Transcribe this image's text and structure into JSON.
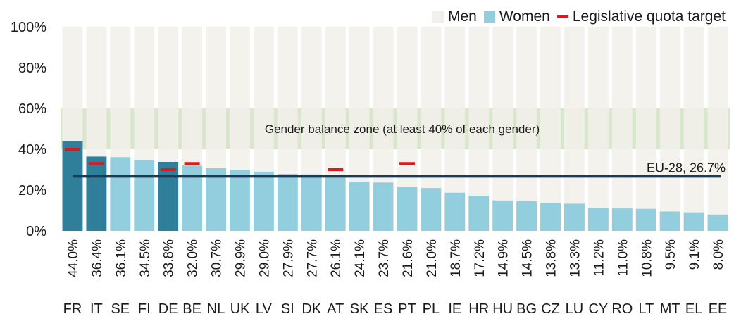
{
  "chart_data": {
    "type": "bar",
    "categories": [
      "FR",
      "IT",
      "SE",
      "FI",
      "DE",
      "BE",
      "NL",
      "UK",
      "LV",
      "SI",
      "DK",
      "AT",
      "SK",
      "ES",
      "PT",
      "PL",
      "IE",
      "HR",
      "HU",
      "BG",
      "CZ",
      "LU",
      "CY",
      "RO",
      "LT",
      "MT",
      "EL",
      "EE"
    ],
    "value_labels": [
      "44.0%",
      "36.4%",
      "36.1%",
      "34.5%",
      "33.8%",
      "32.0%",
      "30.7%",
      "29.9%",
      "29.0%",
      "27.9%",
      "27.7%",
      "26.1%",
      "24.1%",
      "23.7%",
      "21.6%",
      "21.0%",
      "18.7%",
      "17.2%",
      "14.9%",
      "14.5%",
      "13.8%",
      "13.3%",
      "11.2%",
      "11.0%",
      "10.8%",
      "9.5%",
      "9.1%",
      "8.0%"
    ],
    "series": [
      {
        "name": "Women",
        "values": [
          44.0,
          36.4,
          36.1,
          34.5,
          33.8,
          32.0,
          30.7,
          29.9,
          29.0,
          27.9,
          27.7,
          26.1,
          24.1,
          23.7,
          21.6,
          21.0,
          18.7,
          17.2,
          14.9,
          14.5,
          13.8,
          13.3,
          11.2,
          11.0,
          10.8,
          9.5,
          9.1,
          8.0
        ]
      },
      {
        "name": "Men",
        "values": [
          56.0,
          63.6,
          63.9,
          65.5,
          66.2,
          68.0,
          69.3,
          70.1,
          71.0,
          72.1,
          72.3,
          73.9,
          75.9,
          76.3,
          78.4,
          79.0,
          81.3,
          82.8,
          85.1,
          85.5,
          86.2,
          86.7,
          88.8,
          89.0,
          89.2,
          90.5,
          90.9,
          92.0
        ]
      }
    ],
    "quota_series_name": "Legislative quota target",
    "quota_targets": [
      {
        "category": "FR",
        "value": 40
      },
      {
        "category": "IT",
        "value": 33
      },
      {
        "category": "DE",
        "value": 30
      },
      {
        "category": "BE",
        "value": 33
      },
      {
        "category": "AT",
        "value": 30
      },
      {
        "category": "PT",
        "value": 33
      }
    ],
    "highlighted_categories": [
      "FR",
      "IT",
      "DE"
    ],
    "zone": {
      "from": 40,
      "to": 60,
      "label": "Gender balance zone (at least 40% of each gender)"
    },
    "reference_line": {
      "value": 26.7,
      "label": "EU-28, 26.7%"
    },
    "ylim": [
      0,
      100
    ],
    "yticks": [
      0,
      20,
      40,
      60,
      80,
      100
    ],
    "ytick_labels": [
      "0%",
      "20%",
      "40%",
      "60%",
      "80%",
      "100%"
    ],
    "legend_position": "top-right",
    "grid": false,
    "colors": {
      "men": "#f1f0ea",
      "women": "#93cedf",
      "women_highlight": "#2f7f9a",
      "quota": "#e8131b",
      "zone": "#d8e6cc",
      "reference": "#1d3a55"
    }
  }
}
